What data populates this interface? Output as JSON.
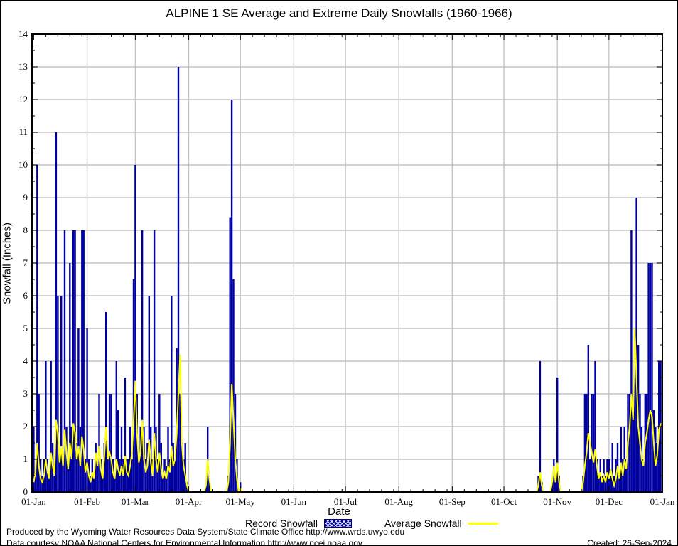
{
  "page": {
    "title": "ALPINE 1 SE Average and Extreme Daily Snowfalls (1960-1966)",
    "footer_produced": "Produced by the Wyoming Water Resources Data System/State Climate Office http://www.wrds.uwyo.edu",
    "footer_courtesy": "Data courtesy NOAA National Centers for Environmental Information http://www.ncei.noaa.gov",
    "created": "Created: 26-Sep-2024"
  },
  "legend": {
    "record_label": "Record Snowfall",
    "average_label": "Average Snowfall"
  },
  "colors": {
    "bar": "#0000a0",
    "line": "#ffff00",
    "grid": "#c4c4c4",
    "axis": "#000000"
  },
  "chart_data": {
    "type": "bar",
    "title": "ALPINE 1 SE Average and Extreme Daily Snowfalls (1960-1966)",
    "xlabel": "Date",
    "ylabel": "Snowfall (Inches)",
    "ylim": [
      0,
      14
    ],
    "grid": true,
    "legend_position": "bottom",
    "days_in_year": 366,
    "x_tick_labels": [
      "01-Jan",
      "01-Feb",
      "01-Mar",
      "01-Apr",
      "01-May",
      "01-Jun",
      "01-Jul",
      "01-Aug",
      "01-Sep",
      "01-Oct",
      "01-Nov",
      "01-Dec",
      "01-Jan"
    ],
    "month_start_days": [
      1,
      32,
      60,
      91,
      121,
      152,
      182,
      213,
      244,
      274,
      305,
      335,
      366
    ],
    "y_tick_values": [
      0,
      1,
      2,
      3,
      4,
      5,
      6,
      7,
      8,
      9,
      10,
      11,
      12,
      13,
      14
    ],
    "series_names": [
      "Record Snowfall (bars)",
      "Average Snowfall (line)"
    ],
    "points_format": [
      "day_of_year",
      "record_in",
      "average_in"
    ],
    "points": [
      [
        1,
        2,
        0.3
      ],
      [
        2,
        0.5,
        0.6
      ],
      [
        3,
        10,
        1.5
      ],
      [
        4,
        3,
        0.8
      ],
      [
        5,
        1,
        0.4
      ],
      [
        6,
        0.5,
        0.3
      ],
      [
        7,
        1,
        0.5
      ],
      [
        8,
        4,
        1.0
      ],
      [
        9,
        1,
        0.6
      ],
      [
        10,
        0.5,
        0.4
      ],
      [
        11,
        4,
        1.2
      ],
      [
        12,
        1.5,
        0.8
      ],
      [
        13,
        0.5,
        0.5
      ],
      [
        14,
        11,
        2.2
      ],
      [
        15,
        6,
        1.8
      ],
      [
        16,
        1,
        0.9
      ],
      [
        17,
        6,
        1.4
      ],
      [
        18,
        1,
        0.8
      ],
      [
        19,
        8,
        1.9
      ],
      [
        20,
        2,
        1.2
      ],
      [
        21,
        1,
        0.7
      ],
      [
        22,
        7,
        1.5
      ],
      [
        23,
        2,
        1.0
      ],
      [
        24,
        8,
        2.1
      ],
      [
        25,
        8,
        1.8
      ],
      [
        26,
        1.5,
        1.0
      ],
      [
        27,
        5,
        1.4
      ],
      [
        28,
        2,
        0.8
      ],
      [
        29,
        8,
        1.7
      ],
      [
        30,
        8,
        1.3
      ],
      [
        31,
        1,
        0.6
      ],
      [
        32,
        5,
        0.9
      ],
      [
        33,
        1,
        0.5
      ],
      [
        34,
        0.5,
        0.3
      ],
      [
        35,
        1,
        0.6
      ],
      [
        36,
        0.5,
        0.4
      ],
      [
        37,
        1.5,
        1.2
      ],
      [
        38,
        1,
        0.8
      ],
      [
        39,
        3,
        1.4
      ],
      [
        40,
        1,
        0.7
      ],
      [
        41,
        0.5,
        0.4
      ],
      [
        42,
        1.5,
        1.1
      ],
      [
        43,
        5.5,
        2.0
      ],
      [
        44,
        1,
        1.0
      ],
      [
        45,
        3,
        1.2
      ],
      [
        46,
        3,
        1.0
      ],
      [
        47,
        1,
        0.6
      ],
      [
        48,
        0.5,
        0.4
      ],
      [
        49,
        4,
        1.0
      ],
      [
        50,
        2.5,
        0.7
      ],
      [
        51,
        1,
        0.5
      ],
      [
        52,
        2,
        0.8
      ],
      [
        53,
        1,
        0.5
      ],
      [
        54,
        3.5,
        1.1
      ],
      [
        55,
        1,
        0.6
      ],
      [
        56,
        1,
        0.5
      ],
      [
        57,
        2,
        0.8
      ],
      [
        58,
        1,
        1.2
      ],
      [
        59,
        6.5,
        2.2
      ],
      [
        60,
        10,
        3.4
      ],
      [
        61,
        3,
        1.8
      ],
      [
        62,
        1,
        0.9
      ],
      [
        63,
        2,
        1.2
      ],
      [
        64,
        8,
        2.2
      ],
      [
        65,
        2,
        1.0
      ],
      [
        66,
        1,
        0.6
      ],
      [
        67,
        1.5,
        0.8
      ],
      [
        68,
        6,
        1.6
      ],
      [
        69,
        2,
        0.9
      ],
      [
        70,
        1,
        0.5
      ],
      [
        71,
        8,
        1.8
      ],
      [
        72,
        2,
        1.0
      ],
      [
        73,
        1,
        0.6
      ],
      [
        74,
        3,
        1.2
      ],
      [
        75,
        1.5,
        0.7
      ],
      [
        76,
        0.5,
        0.4
      ],
      [
        77,
        1,
        0.6
      ],
      [
        78,
        0.8,
        0.4
      ],
      [
        79,
        2,
        0.8
      ],
      [
        80,
        1,
        0.6
      ],
      [
        81,
        6,
        1.4
      ],
      [
        82,
        1.5,
        0.8
      ],
      [
        83,
        1,
        1.0
      ],
      [
        84,
        4.4,
        1.8
      ],
      [
        85,
        13,
        3.0
      ],
      [
        86,
        3,
        4.2
      ],
      [
        87,
        1.5,
        1.5
      ],
      [
        88,
        1,
        0.8
      ],
      [
        89,
        1.5,
        0.5
      ],
      [
        90,
        0.3,
        0.2
      ],
      [
        101,
        0.3,
        0.2
      ],
      [
        102,
        2,
        1.0
      ],
      [
        103,
        0.5,
        0.4
      ],
      [
        114,
        0.5,
        0.3
      ],
      [
        115,
        8.4,
        1.5
      ],
      [
        116,
        12,
        3.3
      ],
      [
        117,
        6.5,
        2.2
      ],
      [
        118,
        3,
        1.0
      ],
      [
        119,
        1,
        0.4
      ],
      [
        121,
        0.3,
        0.1
      ],
      [
        294,
        0.5,
        0.2
      ],
      [
        295,
        4,
        0.6
      ],
      [
        296,
        0.3,
        0.2
      ],
      [
        302,
        0.3,
        0.3
      ],
      [
        303,
        1,
        0.8
      ],
      [
        304,
        0.3,
        0.3
      ],
      [
        305,
        3.5,
        0.9
      ],
      [
        306,
        0.5,
        0.3
      ],
      [
        320,
        0.5,
        0.3
      ],
      [
        321,
        3,
        0.8
      ],
      [
        322,
        3,
        1.2
      ],
      [
        323,
        4.5,
        1.8
      ],
      [
        324,
        1,
        1.5
      ],
      [
        325,
        3,
        1.2
      ],
      [
        326,
        3,
        0.9
      ],
      [
        327,
        4,
        1.3
      ],
      [
        328,
        1,
        0.8
      ],
      [
        329,
        0.5,
        0.4
      ],
      [
        330,
        1,
        0.6
      ],
      [
        331,
        0.5,
        0.3
      ],
      [
        332,
        1,
        0.5
      ],
      [
        333,
        0.5,
        0.3
      ],
      [
        334,
        1,
        0.6
      ],
      [
        335,
        1,
        0.4
      ],
      [
        336,
        0.5,
        0.7
      ],
      [
        337,
        1.5,
        0.4
      ],
      [
        338,
        0.5,
        0.2
      ],
      [
        339,
        1,
        0.4
      ],
      [
        340,
        1.5,
        0.8
      ],
      [
        341,
        0.5,
        0.4
      ],
      [
        342,
        2,
        0.9
      ],
      [
        343,
        1,
        0.5
      ],
      [
        344,
        2,
        1.0
      ],
      [
        345,
        1,
        0.7
      ],
      [
        346,
        3,
        1.5
      ],
      [
        347,
        3,
        2.0
      ],
      [
        348,
        8,
        3.0
      ],
      [
        349,
        3,
        2.2
      ],
      [
        350,
        4,
        5.0
      ],
      [
        351,
        9,
        3.5
      ],
      [
        352,
        4.5,
        2.0
      ],
      [
        353,
        3,
        1.5
      ],
      [
        354,
        2,
        1.0
      ],
      [
        355,
        1,
        0.8
      ],
      [
        356,
        3,
        1.5
      ],
      [
        357,
        3,
        1.8
      ],
      [
        358,
        7,
        2.2
      ],
      [
        359,
        7,
        2.5
      ],
      [
        360,
        7,
        2.3
      ],
      [
        361,
        2.5,
        1.5
      ],
      [
        362,
        2,
        0.8
      ],
      [
        363,
        1.5,
        1.1
      ],
      [
        364,
        4,
        1.9
      ],
      [
        365,
        4,
        2.1
      ]
    ]
  }
}
